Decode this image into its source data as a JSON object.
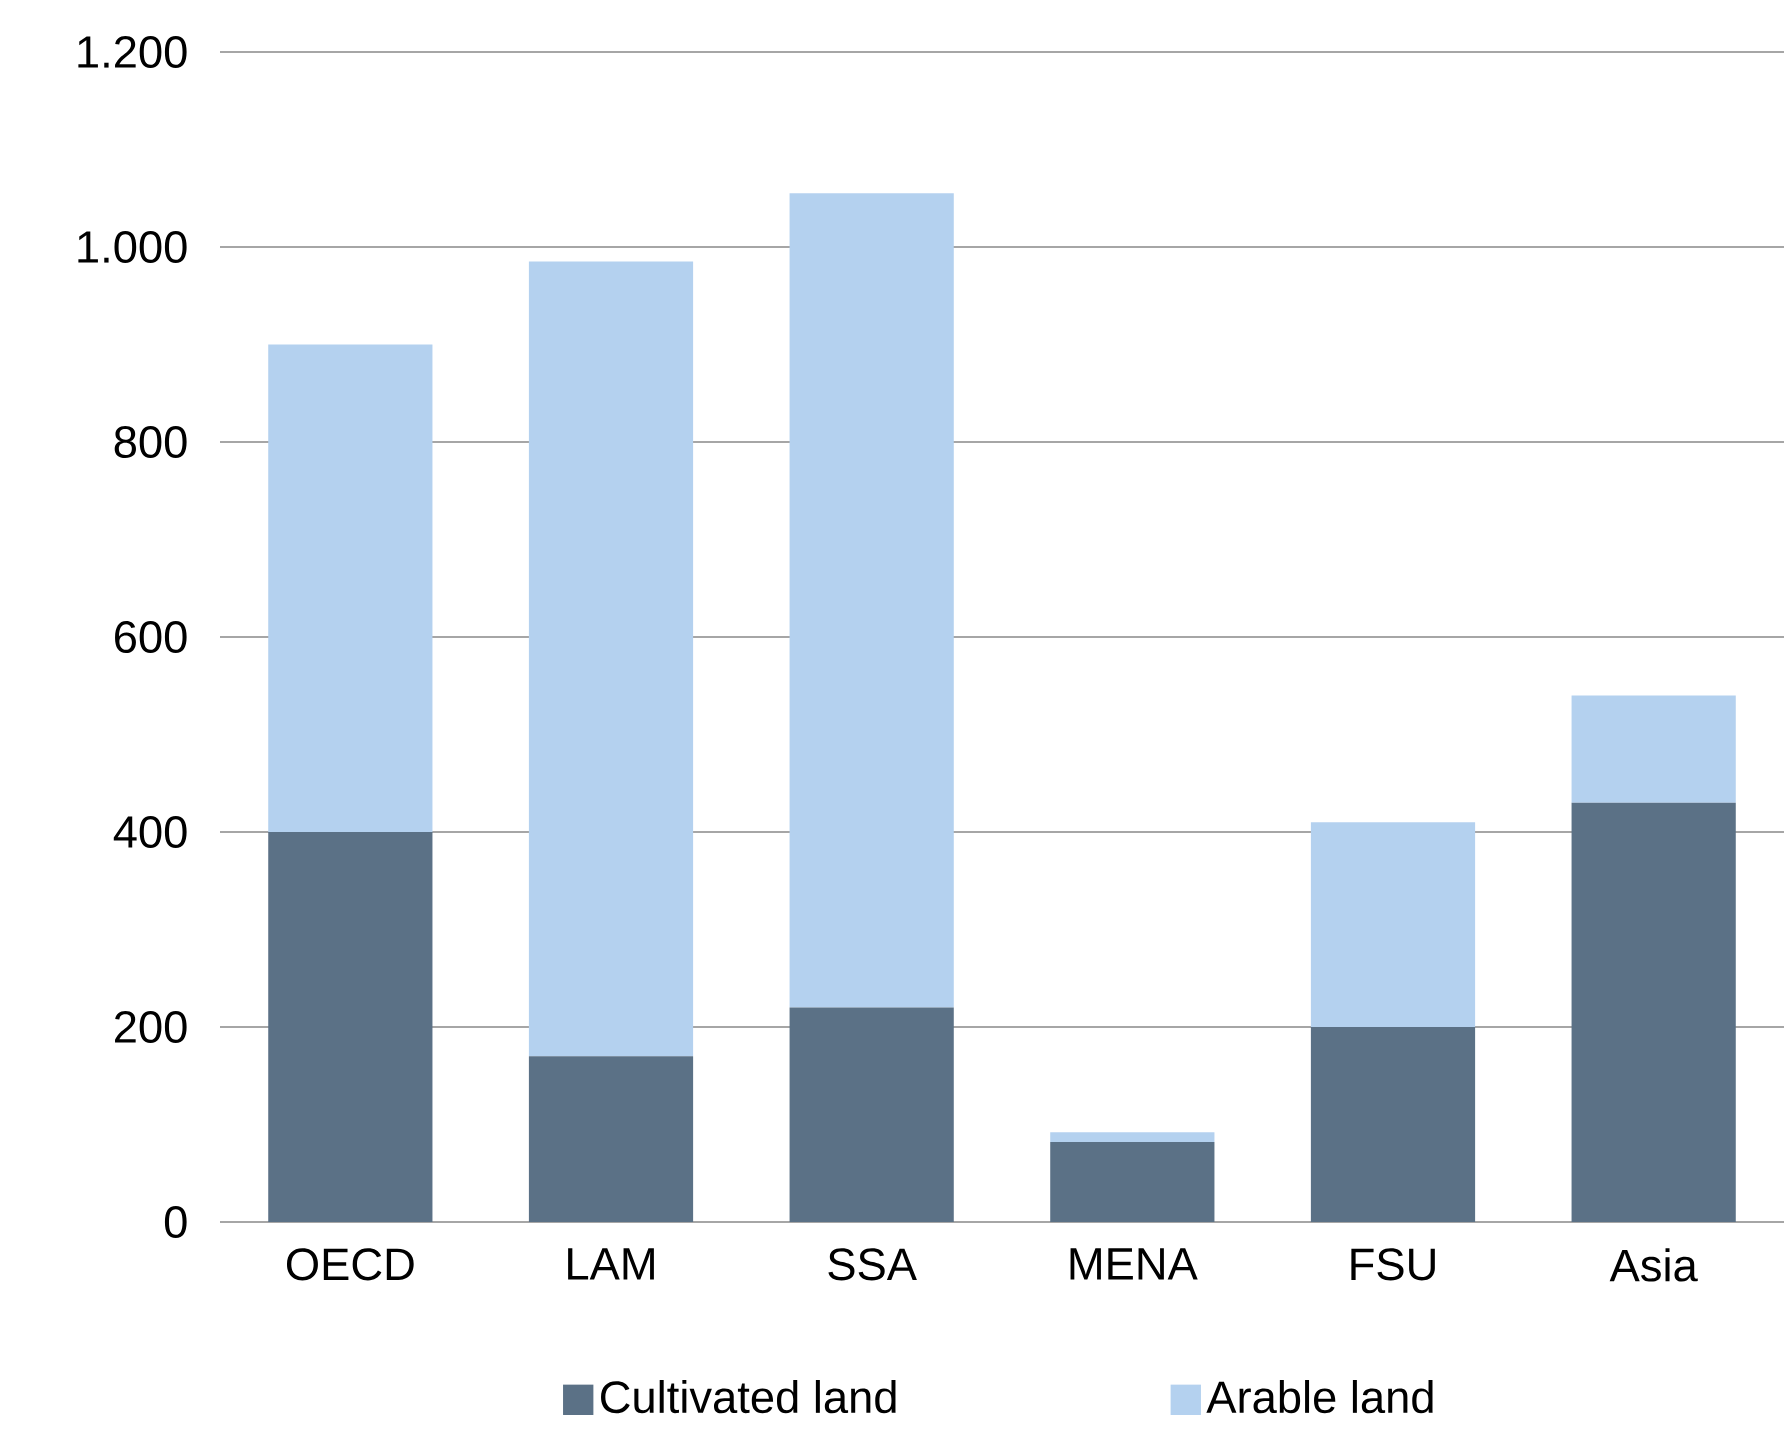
{
  "chart_data": {
    "type": "bar",
    "stacked": true,
    "categories": [
      "OECD",
      "LAM",
      "SSA",
      "MENA",
      "FSU",
      "Asia"
    ],
    "series": [
      {
        "name": "Cultivated land",
        "color": "#5b7186",
        "values": [
          400,
          170,
          220,
          82,
          200,
          430
        ]
      },
      {
        "name": "Arable land",
        "color": "#b4d1ef",
        "values": [
          500,
          815,
          835,
          10,
          210,
          110
        ]
      }
    ],
    "ylim": [
      0,
      1200
    ],
    "yticks": [
      0,
      200,
      400,
      600,
      800,
      {
        "value": 1000,
        "label": "1.000"
      },
      {
        "value": 1200,
        "label": "1.200"
      }
    ],
    "grid": "y",
    "legend": "bottom"
  }
}
